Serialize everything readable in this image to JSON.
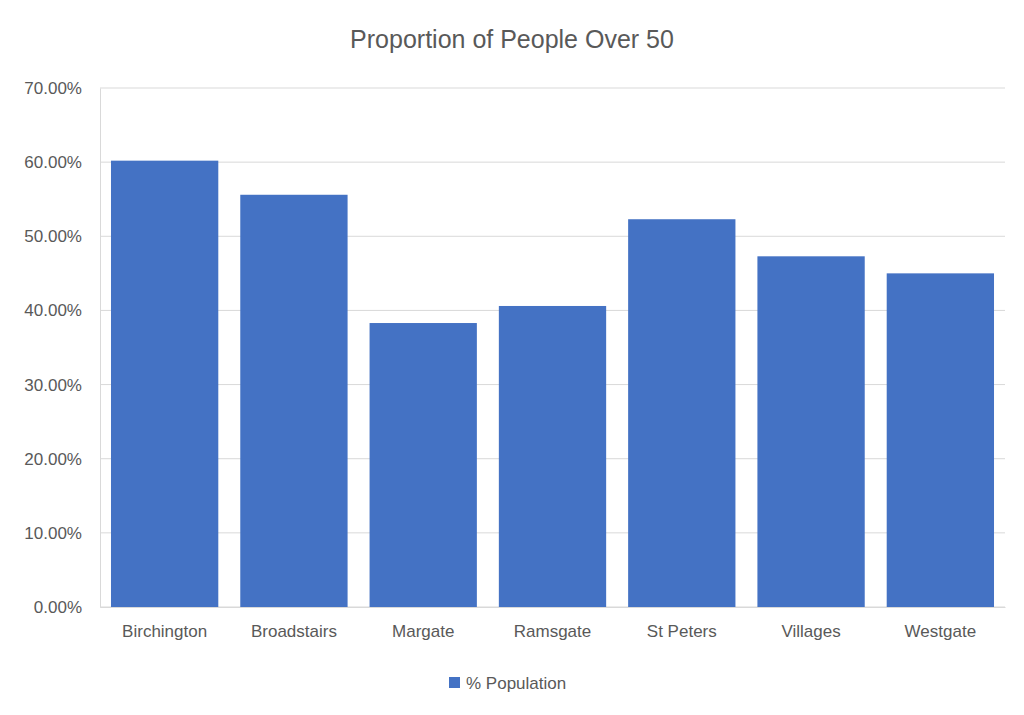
{
  "chart_data": {
    "type": "bar",
    "title": "Proportion of People Over 50",
    "categories": [
      "Birchington",
      "Broadstairs",
      "Margate",
      "Ramsgate",
      "St Peters",
      "Villages",
      "Westgate"
    ],
    "series": [
      {
        "name": "% Population",
        "color": "#4472c4",
        "values": [
          60.2,
          55.6,
          38.3,
          40.6,
          52.3,
          47.3,
          45.0
        ]
      }
    ],
    "ylim": [
      0,
      70
    ],
    "yticks": [
      {
        "value": 0,
        "label": "0.00%"
      },
      {
        "value": 10,
        "label": "10.00%"
      },
      {
        "value": 20,
        "label": "20.00%"
      },
      {
        "value": 30,
        "label": "30.00%"
      },
      {
        "value": 40,
        "label": "40.00%"
      },
      {
        "value": 50,
        "label": "50.00%"
      },
      {
        "value": 60,
        "label": "60.00%"
      },
      {
        "value": 70,
        "label": "70.00%"
      }
    ],
    "grid": true,
    "legend": "bottom"
  }
}
